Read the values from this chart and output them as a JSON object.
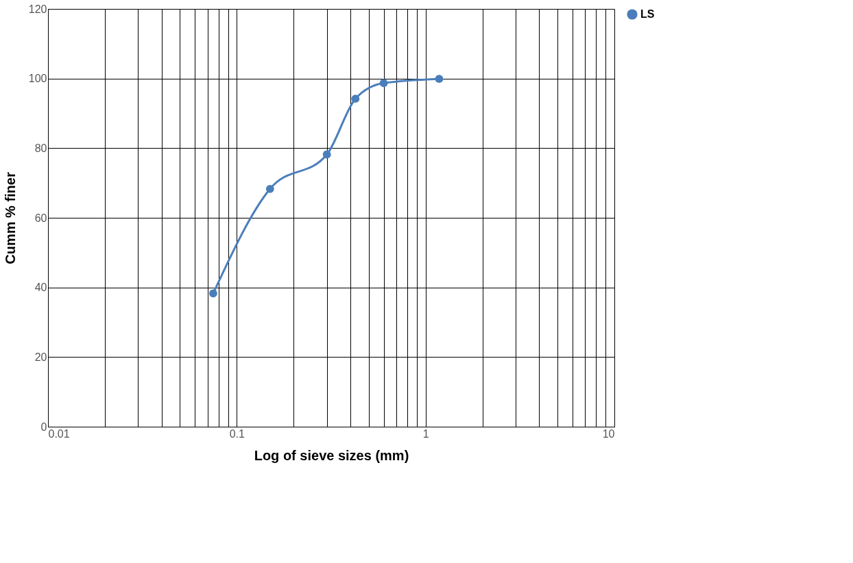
{
  "chart_data": {
    "type": "line",
    "xlabel": "Log of sieve sizes (mm)",
    "ylabel": "Cumm % finer",
    "x": [
      0.075,
      0.15,
      0.3,
      0.425,
      0.6,
      1.18
    ],
    "series": [
      {
        "name": "LS",
        "color": "#4a7ebb",
        "values": [
          38.3,
          68.3,
          78.2,
          94.2,
          98.7,
          99.9
        ]
      }
    ],
    "log": "x",
    "xlim": [
      0.01,
      10
    ],
    "xticks": [
      0.01,
      {
        "value": 0.02,
        "label": null
      },
      {
        "value": 0.03,
        "label": null
      },
      {
        "value": 0.04,
        "label": null
      },
      {
        "value": 0.05,
        "label": null
      },
      {
        "value": 0.06,
        "label": null
      },
      {
        "value": 0.07,
        "label": null
      },
      {
        "value": 0.08,
        "label": null
      },
      {
        "value": 0.09,
        "label": null
      },
      0.1,
      {
        "value": 0.2,
        "label": null
      },
      {
        "value": 0.3,
        "label": null
      },
      {
        "value": 0.4,
        "label": null
      },
      {
        "value": 0.5,
        "label": null
      },
      {
        "value": 0.6,
        "label": null
      },
      {
        "value": 0.7,
        "label": null
      },
      {
        "value": 0.8,
        "label": null
      },
      {
        "value": 0.9,
        "label": null
      },
      1,
      {
        "value": 2,
        "label": null
      },
      {
        "value": 3,
        "label": null
      },
      {
        "value": 4,
        "label": null
      },
      {
        "value": 5,
        "label": null
      },
      {
        "value": 6,
        "label": null
      },
      {
        "value": 7,
        "label": null
      },
      {
        "value": 8,
        "label": null
      },
      {
        "value": 9,
        "label": null
      },
      10
    ],
    "ylim": [
      0,
      120
    ],
    "yticks": [
      0,
      20,
      40,
      60,
      80,
      100,
      120
    ],
    "grid": true,
    "legend": "right",
    "marker": "circle",
    "line_style": "solid"
  }
}
